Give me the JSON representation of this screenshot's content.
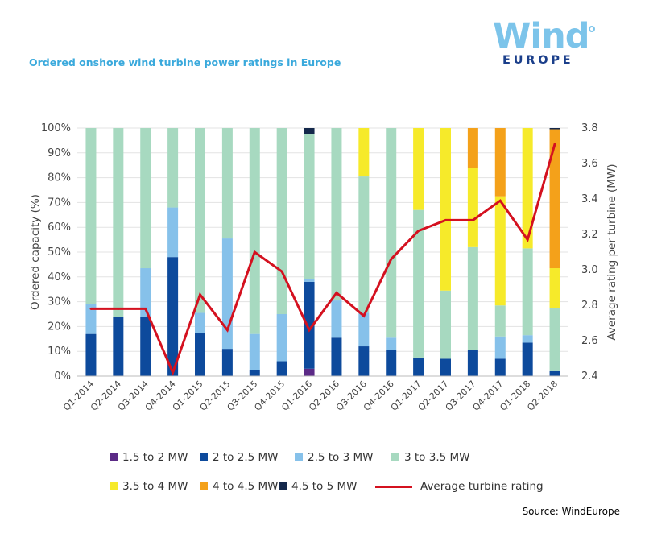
{
  "title": "Ordered onshore wind turbine power ratings in Europe",
  "logo": {
    "word": "Wind",
    "sub": "EUROPE"
  },
  "source": "Source: WindEurope",
  "chart_data": {
    "type": "bar",
    "stacked": true,
    "categories": [
      "Q1-2014",
      "Q2-2014",
      "Q3-2014",
      "Q4-2014",
      "Q1-2015",
      "Q2-2015",
      "Q3-2015",
      "Q4-2015",
      "Q1-2016",
      "Q2-2016",
      "Q3-2016",
      "Q4-2016",
      "Q1-2017",
      "Q2-2017",
      "Q3-2017",
      "Q4-2017",
      "Q1-2018",
      "Q2-2018"
    ],
    "ylabel": "Ordered capacity (%)",
    "y2label": "Average rating per turbine (MW)",
    "ylim": [
      0,
      100
    ],
    "y2lim": [
      2.4,
      3.8
    ],
    "yticks": [
      "0%",
      "10%",
      "20%",
      "30%",
      "40%",
      "50%",
      "60%",
      "70%",
      "80%",
      "90%",
      "100%"
    ],
    "y2ticks": [
      "2.4",
      "2.6",
      "2.8",
      "3.0",
      "3.2",
      "3.4",
      "3.6",
      "3.8"
    ],
    "series": [
      {
        "name": "1.5 to 2 MW",
        "color": "#5b2a86",
        "values": [
          0,
          0,
          0,
          0,
          0,
          0,
          0,
          0,
          3,
          0,
          0,
          0,
          0,
          0,
          0,
          0,
          0,
          0
        ]
      },
      {
        "name": "2 to 2.5 MW",
        "color": "#0d4a9c",
        "values": [
          17,
          24,
          24,
          48,
          17.5,
          11,
          2.5,
          6,
          35,
          15.5,
          12,
          10.5,
          7.5,
          7,
          10.5,
          7,
          13.5,
          2
        ]
      },
      {
        "name": "2.5 to 3 MW",
        "color": "#86c1ea",
        "values": [
          12,
          0,
          19.5,
          20,
          8,
          44.5,
          14.5,
          19,
          1,
          15,
          13.5,
          5,
          0,
          0,
          0,
          9,
          3,
          0
        ]
      },
      {
        "name": "3 to 3.5 MW",
        "color": "#a7d9c0",
        "values": [
          71,
          76,
          56.5,
          32,
          74.5,
          44.5,
          83,
          75,
          58.5,
          69.5,
          55,
          84.5,
          59.5,
          27.5,
          41.5,
          12.5,
          35,
          25.5
        ]
      },
      {
        "name": "3.5 to 4 MW",
        "color": "#f6ea2a",
        "values": [
          0,
          0,
          0,
          0,
          0,
          0,
          0,
          0,
          0,
          0,
          19.5,
          0,
          33,
          65.5,
          32,
          44,
          48.5,
          16
        ]
      },
      {
        "name": "4 to 4.5 MW",
        "color": "#f4a11a",
        "values": [
          0,
          0,
          0,
          0,
          0,
          0,
          0,
          0,
          0,
          0,
          0,
          0,
          0,
          0,
          16,
          27.5,
          0,
          56
        ]
      },
      {
        "name": "4.5 to 5 MW",
        "color": "#14284b",
        "values": [
          0,
          0,
          0,
          0,
          0,
          0,
          0,
          0,
          2.5,
          0,
          0,
          0,
          0,
          0,
          0,
          0,
          0,
          0.5
        ]
      }
    ],
    "line": {
      "name": "Average turbine rating",
      "color": "#d4111f",
      "values": [
        2.78,
        2.78,
        2.78,
        2.42,
        2.86,
        2.66,
        3.1,
        2.99,
        2.66,
        2.87,
        2.74,
        3.06,
        3.22,
        3.28,
        3.28,
        3.39,
        3.17,
        3.71
      ]
    }
  }
}
